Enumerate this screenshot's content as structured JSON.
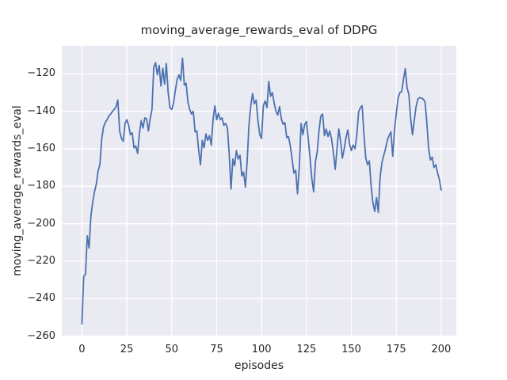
{
  "figure": {
    "title": "moving_average_rewards_eval of DDPG",
    "xlabel": "episodes",
    "ylabel": "moving_average_rewards_eval"
  },
  "chart_data": {
    "type": "line",
    "title": "moving_average_rewards_eval of DDPG",
    "xlabel": "episodes",
    "ylabel": "moving_average_rewards_eval",
    "grid": true,
    "legend": "none",
    "xlim": [
      -11.2,
      208.4
    ],
    "ylim": [
      -260.2,
      -105.1
    ],
    "xticks": [
      0,
      25,
      50,
      75,
      100,
      125,
      150,
      175,
      200
    ],
    "yticks": [
      -260,
      -240,
      -220,
      -200,
      -180,
      -160,
      -140,
      -120
    ],
    "xtick_labels": [
      "0",
      "25",
      "50",
      "75",
      "100",
      "125",
      "150",
      "175",
      "200"
    ],
    "ytick_labels": [
      "−260",
      "−240",
      "−220",
      "−200",
      "−180",
      "−160",
      "−140",
      "−120"
    ],
    "styles": {
      "fig_bg": "#ffffff",
      "axes_bg": "#eaeaf2",
      "grid_color": "#ffffff",
      "line_color": "#4c72b0",
      "text_color": "#262626"
    },
    "series": [
      {
        "name": "moving_average_rewards_eval",
        "color": "#4c72b0",
        "x_start": 0,
        "x_step": 1,
        "values": [
          -253.5,
          -228,
          -227,
          -206.5,
          -213,
          -196,
          -188.5,
          -183,
          -179,
          -172,
          -168.5,
          -155,
          -148.5,
          -146,
          -144.5,
          -142.5,
          -141.5,
          -140,
          -139,
          -137.5,
          -134,
          -150.5,
          -154.5,
          -156,
          -146.5,
          -144.5,
          -147.5,
          -152.5,
          -151.5,
          -159.5,
          -158.5,
          -162.5,
          -152,
          -145,
          -149,
          -143.5,
          -144,
          -150.5,
          -144,
          -139,
          -116.5,
          -114,
          -120.5,
          -115.5,
          -126.5,
          -117,
          -125.5,
          -114.5,
          -130,
          -138,
          -139,
          -135.5,
          -129,
          -123,
          -120.5,
          -123.5,
          -111.6,
          -126,
          -125,
          -135,
          -139,
          -141.5,
          -140,
          -151,
          -150.5,
          -161,
          -168.5,
          -155.5,
          -159.5,
          -152,
          -155.5,
          -153,
          -158,
          -144.5,
          -137,
          -144.5,
          -141,
          -144.5,
          -143.5,
          -147.5,
          -146.5,
          -149,
          -163,
          -181.5,
          -165.5,
          -169,
          -161,
          -165.5,
          -163.5,
          -174.5,
          -172.5,
          -180.5,
          -166.5,
          -147,
          -137,
          -130.5,
          -136,
          -134,
          -145,
          -152.5,
          -154.5,
          -137,
          -134.5,
          -138,
          -124,
          -132,
          -130,
          -135.5,
          -140,
          -142,
          -137.5,
          -144,
          -147,
          -146,
          -154,
          -153.5,
          -158.5,
          -165.5,
          -173,
          -171.5,
          -184,
          -170,
          -146.5,
          -152.5,
          -147,
          -145.5,
          -155,
          -165,
          -176,
          -183,
          -167,
          -161.5,
          -150,
          -142.5,
          -141.5,
          -153,
          -149.5,
          -153.5,
          -150.5,
          -155,
          -162,
          -171,
          -160,
          -149.5,
          -156,
          -165,
          -160,
          -154,
          -150,
          -157.5,
          -161,
          -158,
          -160,
          -153,
          -140.5,
          -138,
          -137,
          -152.5,
          -165,
          -168.5,
          -166.5,
          -180,
          -189,
          -193.5,
          -186,
          -194,
          -175,
          -167.5,
          -163.5,
          -160,
          -155.5,
          -153,
          -151,
          -164,
          -150,
          -141,
          -133,
          -130,
          -129.5,
          -123,
          -117.2,
          -127.5,
          -131,
          -144,
          -152.5,
          -145,
          -137.5,
          -133.5,
          -132.7,
          -133,
          -133.5,
          -135,
          -146,
          -160,
          -166,
          -164.5,
          -170,
          -168.5,
          -173,
          -176.5,
          -182
        ]
      }
    ]
  }
}
